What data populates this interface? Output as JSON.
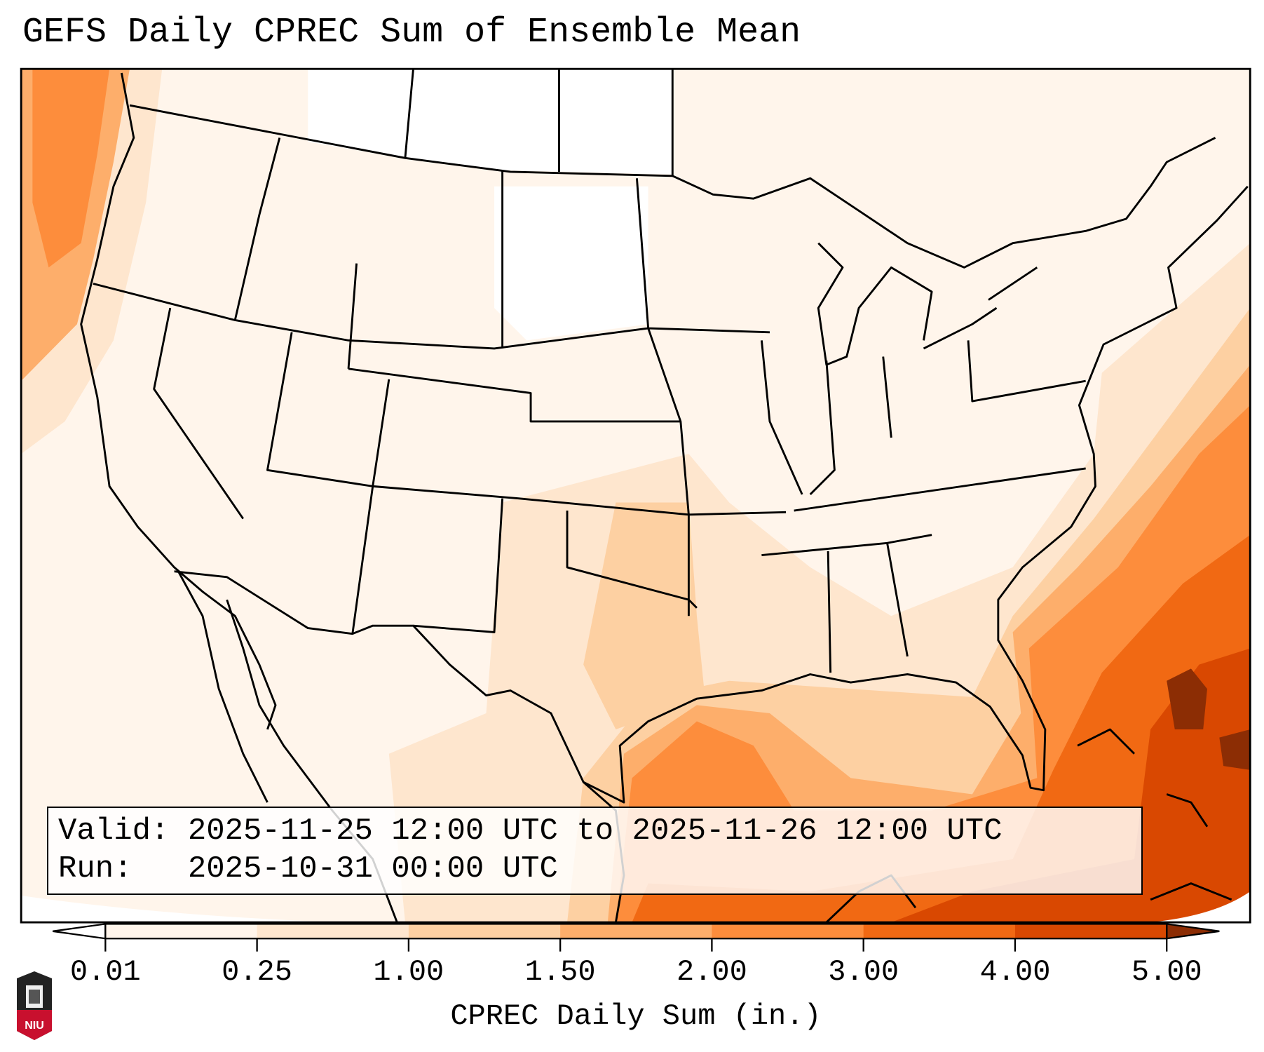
{
  "title": "GEFS Daily CPREC Sum of Ensemble Mean",
  "legend": {
    "valid": "Valid: 2025-11-25 12:00 UTC to 2025-11-26 12:00 UTC",
    "run": "Run:   2025-10-31 00:00 UTC"
  },
  "colorbar": {
    "label": "CPREC Daily Sum (in.)",
    "ticks": [
      "0.01",
      "0.25",
      "1.00",
      "1.50",
      "2.00",
      "3.00",
      "4.00",
      "5.00"
    ],
    "colors": [
      "#ffffff",
      "#fff5eb",
      "#fee6ce",
      "#fdd0a2",
      "#fdae6b",
      "#fd8d3c",
      "#f16913",
      "#d94801",
      "#8c2d04"
    ]
  },
  "logo": {
    "text": "NIU"
  }
}
